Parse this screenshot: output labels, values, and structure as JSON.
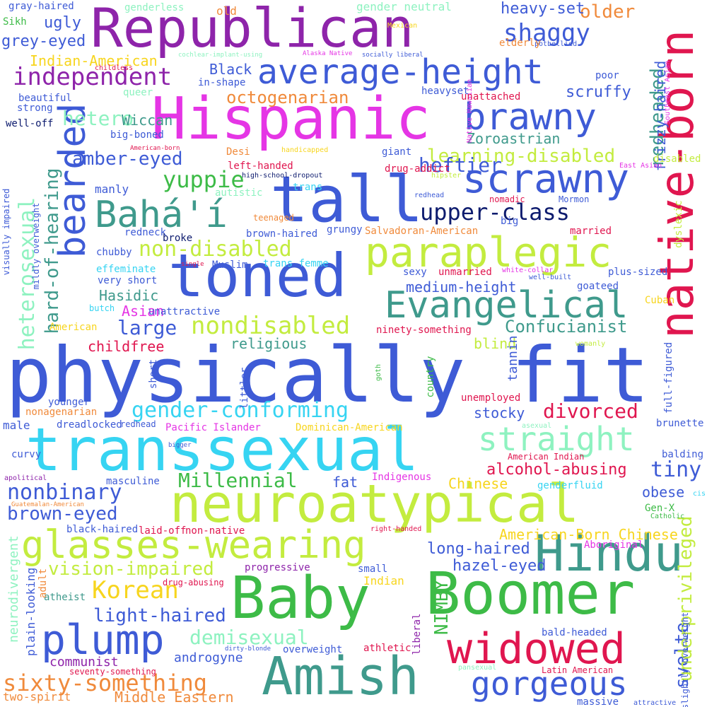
{
  "words": {
    "republican": "Republican",
    "hispanic": "Hispanic",
    "native_born": "native-born",
    "physically_fit": "physically fit",
    "tall": "tall",
    "toned": "toned",
    "transsexual": "transsexual",
    "neuroatypical": "neuroatypical",
    "baby": "Baby",
    "boomer": "Boomer",
    "amish": "Amish",
    "widowed": "widowed",
    "hindu": "Hindu",
    "glasses_wearing": "glasses-wearing",
    "paraplegic": "paraplegic",
    "average_height": "average-height",
    "brawny": "brawny",
    "scrawny": "scrawny",
    "bahai": "Bahá'í",
    "evangelical": "Evangelical",
    "bearded": "bearded",
    "plump": "plump",
    "gorgeous": "gorgeous",
    "independent": "independent",
    "straight": "straight",
    "gender_conforming": "gender-conforming",
    "sixty_something": "sixty-something",
    "korean": "Korean",
    "nondisabled": "nondisabled",
    "non_disabled": "non-disabled",
    "upper_class": "upper-class",
    "heterosexual": "heterosexual",
    "hard_of_hearing": "hard-of-hearing",
    "learning_disabled": "learning-disabled",
    "yuppie": "yuppie",
    "shaggy": "shaggy",
    "millennial": "Millennial",
    "nonbinary": "nonbinary",
    "brown_eyed": "brown-eyed",
    "light_haired": "light-haired",
    "demisexual": "demisexual",
    "vision_impaired": "vision-impaired",
    "divorced": "divorced",
    "tiny": "tiny",
    "confucianist": "Confucianist",
    "octogenarian": "octogenarian",
    "hetero": "hetero",
    "heftier": "heftier",
    "amber_eyed": "amber-eyed",
    "large": "large",
    "svelte": "svelte",
    "underprivileged": "underprivileged",
    "nimby": "NIMBY",
    "hazel_eyed": "hazel-eyed",
    "long_haired": "long-haired",
    "american_born_chinese": "American-Born Chinese",
    "alcohol_abusing": "alcohol-abusing",
    "redheaded": "redheaded",
    "frizzy_haired": "frizzy-haired",
    "scruffy": "scruffy",
    "older": "older",
    "heavy_set": "heavy-set",
    "ugly": "ugly",
    "grey_eyed": "grey-eyed",
    "indian_american": "Indian-American",
    "black": "Black",
    "wiccan": "Wiccan",
    "zoroastrian": "Zoroastrian",
    "hasidic": "Hasidic",
    "asian": "Asian",
    "childfree": "childfree",
    "religious": "religious",
    "medium_height": "medium-height",
    "blind": "blind",
    "stocky": "stocky",
    "fat": "fat",
    "obese": "obese",
    "chinese": "Chinese",
    "middle_eastern": "Middle Eastern",
    "androgyne": "androgyne",
    "communist": "communist",
    "two_spirit": "two-spirit",
    "neurodivergent": "neurodivergent",
    "plain_looking": "plain-looking",
    "progressive": "progressive",
    "indian": "Indian",
    "gray_haired": "gray-haired",
    "sikh": "Sikh",
    "genderless": "genderless",
    "old": "old",
    "gender_neutral": "gender neutral",
    "mexican": "Mexican",
    "potbellied": "potbellied",
    "elderly": "elderly",
    "cochlear_implant_using": "cochlear-implant-using",
    "alaska_native": "Alaska Native",
    "socially_liberal": "socially liberal",
    "childless": "childless",
    "in_shape": "in-shape",
    "native_hawaiian": "Native Hawaiian",
    "poor": "poor",
    "unattached": "unattached",
    "southeast_asian": "Southeast Asian",
    "beautiful": "beautiful",
    "strong": "strong",
    "queer": "queer",
    "heavyset": "heavyset",
    "well_off": "well-off",
    "big_boned": "big-boned",
    "american_born": "American-born",
    "desi": "Desi",
    "handicapped": "handicapped",
    "giant": "giant",
    "east_asian": "East Asian",
    "disabled": "disabled",
    "left_handed": "left-handed",
    "drug_addict": "drug-addict",
    "high_school_dropout": "high-school-dropout",
    "hipster": "hipster",
    "trans": "trans",
    "autistic": "autistic",
    "manly": "manly",
    "nomadic": "nomadic",
    "mormon": "Mormon",
    "redhead": "redhead",
    "teenaged": "teenaged",
    "visually_impaired": "visually impaired",
    "mildly_overweight": "mildly overweight",
    "redneck": "redneck",
    "broke": "broke",
    "brown_haired": "brown-haired",
    "grungy": "grungy",
    "salvadoran_american": "Salvadoran-American",
    "big": "big",
    "married": "married",
    "dyslexic": "dyslexic",
    "chubby": "chubby",
    "single": "single",
    "muslim": "Muslim",
    "trans_femme": "trans femme",
    "effeminate": "effeminate",
    "sexy": "sexy",
    "unmarried": "unmarried",
    "white_collar": "white-collar",
    "well_built": "well-built",
    "plus_sized": "plus-sized",
    "very_short": "very short",
    "goateed": "goateed",
    "butch": "butch",
    "unattractive": "unattractive",
    "cuban": "Cuban",
    "american": "American",
    "ninety_something": "ninety-something",
    "tannin": "tannin",
    "womanly": "womanly",
    "full_figured": "full-figured",
    "short": "short",
    "littler": "littler",
    "goth": "goth",
    "country": "country",
    "younger": "younger",
    "unemployed": "unemployed",
    "nonagenarian": "nonagenarian",
    "male": "male",
    "dreadlocked": "dreadlocked",
    "redhead2": "redhead",
    "pacific_islander": "Pacific Islander",
    "dominican_american": "Dominican-American",
    "asexual": "asexual",
    "brunette": "brunette",
    "curvy": "curvy",
    "bigger": "bigger",
    "american_indian": "American Indian",
    "balding": "balding",
    "apolitical": "apolitical",
    "masculine": "masculine",
    "indigenous": "Indigenous",
    "genderfluid": "genderfluid",
    "cis": "cis",
    "guatemalan_american": "Guatemalan-American",
    "gen_x": "Gen-X",
    "catholic": "Catholic",
    "black_haired": "black-haired",
    "laid_off": "laid-off",
    "non_native": "non-native",
    "right_handed": "right-handed",
    "aboriginal": "Aboriginal",
    "small": "small",
    "drug_abusing": "drug-abusing",
    "adult": "adult",
    "atheist": "atheist",
    "liberal": "liberal",
    "bald_headed": "bald-headed",
    "slightly_overweight": "slightly overweight",
    "seventy_something": "seventy-something",
    "overweight": "overweight",
    "athletic": "athletic",
    "dirty_blonde": "dirty-blonde",
    "pansexual": "pansexual",
    "latin_american": "Latin American",
    "massive": "massive",
    "attractive": "attractive"
  },
  "colors": {
    "purple": "#8e24aa",
    "magenta": "#e535e5",
    "crimson": "#e0164f",
    "royal_blue": "#3e5bd6",
    "cyan": "#36d4f2",
    "lime": "#c3ec3f",
    "green": "#3dbb47",
    "teal": "#3f9a8c",
    "yellow": "#f7d51e",
    "orange": "#f08a3b",
    "mint": "#8ef2c0",
    "navy": "#0d1b6e"
  }
}
